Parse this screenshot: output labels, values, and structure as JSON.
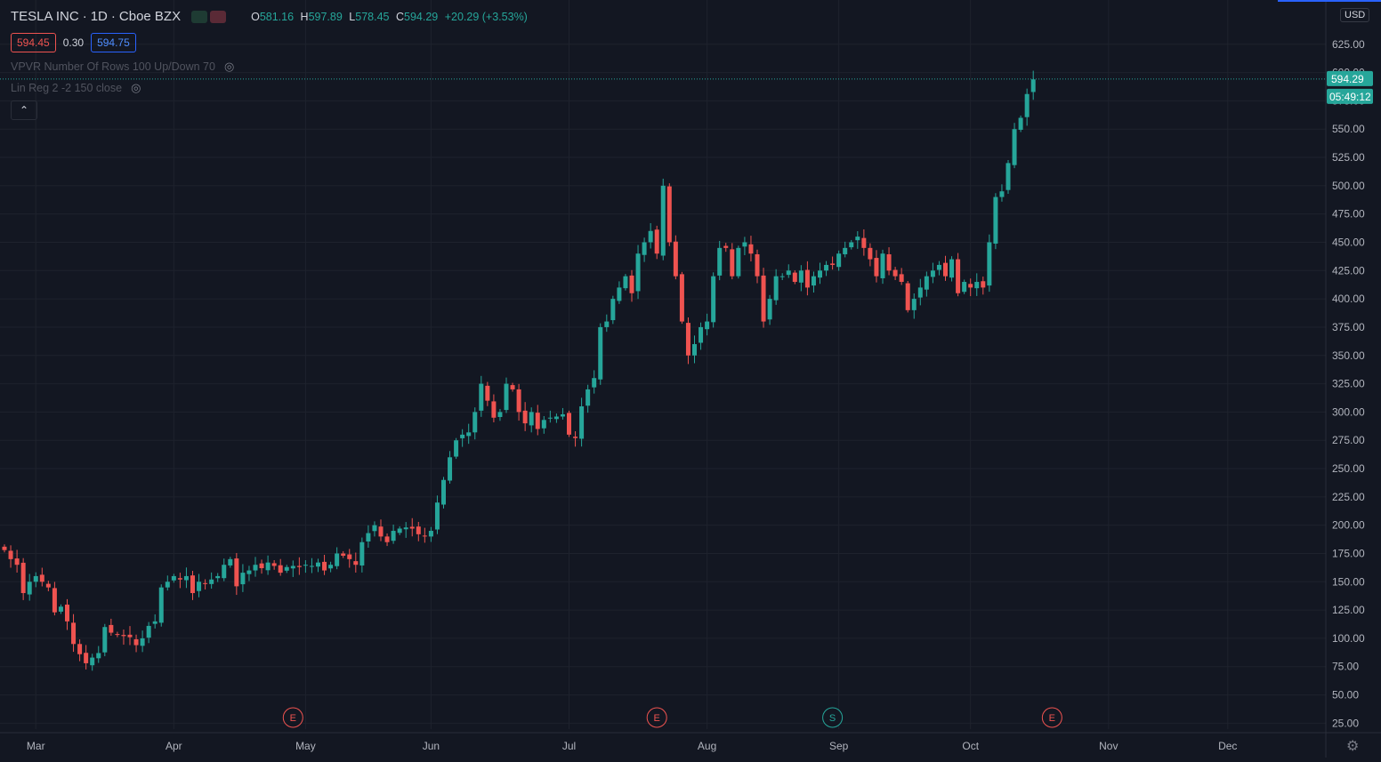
{
  "header": {
    "symbol": "TESLA INC",
    "interval": "1D",
    "exchange": "Cboe BZX",
    "ohlc": {
      "o_label": "O",
      "o": "581.16",
      "h_label": "H",
      "h": "597.89",
      "l_label": "L",
      "l": "578.45",
      "c_label": "C",
      "c": "594.29",
      "change": "+20.29 (+3.53%)"
    }
  },
  "quote": {
    "sell": "594.45",
    "spread": "0.30",
    "buy": "594.75"
  },
  "indicators": [
    {
      "label": "VPVR Number Of Rows 100 Up/Down 70"
    },
    {
      "label": "Lin Reg 2 -2 150 close"
    }
  ],
  "axis": {
    "currency": "USD",
    "last_price": "594.29",
    "countdown": "05:49:12"
  },
  "colors": {
    "background": "#131722",
    "grid": "#1e222d",
    "up": "#26a69a",
    "down": "#ef5350",
    "text": "#b2b5be",
    "accent": "#2962ff"
  },
  "icons": {
    "eye": "eye-off-icon",
    "collapse": "chevron-up-icon",
    "settings": "gear-icon"
  },
  "chart_data": {
    "type": "candlestick",
    "ylim": [
      0,
      650
    ],
    "y_ticks": [
      "25.00",
      "50.00",
      "75.00",
      "100.00",
      "125.00",
      "150.00",
      "175.00",
      "200.00",
      "225.00",
      "250.00",
      "275.00",
      "300.00",
      "325.00",
      "350.00",
      "375.00",
      "400.00",
      "425.00",
      "450.00",
      "475.00",
      "500.00",
      "525.00",
      "550.00",
      "575.00",
      "600.00",
      "625.00"
    ],
    "x_ticks": [
      "Mar",
      "Apr",
      "May",
      "Jun",
      "Jul",
      "Aug",
      "Sep",
      "Oct",
      "Nov",
      "Dec"
    ],
    "events": [
      {
        "label": "E",
        "date": "Apr 29"
      },
      {
        "label": "E",
        "date": "Jul 22"
      },
      {
        "label": "S",
        "date": "Aug 31"
      },
      {
        "label": "E",
        "date": "Oct 21"
      }
    ],
    "closes": [
      178,
      170,
      165,
      140,
      150,
      155,
      150,
      145,
      123,
      128,
      115,
      95,
      86,
      78,
      83,
      87,
      110,
      105,
      103,
      102,
      101,
      94,
      100,
      111,
      115,
      145,
      150,
      155,
      152,
      155,
      140,
      150,
      148,
      152,
      155,
      165,
      170,
      146,
      158,
      160,
      165,
      162,
      167,
      164,
      158,
      163,
      164,
      163,
      165,
      164,
      167,
      160,
      165,
      175,
      173,
      170,
      165,
      185,
      193,
      200,
      190,
      185,
      195,
      197,
      198,
      197,
      192,
      190,
      195,
      220,
      240,
      260,
      275,
      280,
      282,
      300,
      325,
      310,
      295,
      300,
      325,
      320,
      300,
      290,
      300,
      285,
      293,
      295,
      296,
      298,
      280,
      277,
      305,
      320,
      330,
      375,
      380,
      400,
      410,
      420,
      405,
      440,
      450,
      460,
      440,
      500,
      450,
      420,
      380,
      350,
      360,
      375,
      380,
      420,
      445,
      445,
      420,
      445,
      450,
      440,
      420,
      380,
      400,
      420,
      420,
      425,
      415,
      425,
      410,
      420,
      425,
      430,
      430,
      440,
      445,
      450,
      455,
      445,
      435,
      420,
      440,
      425,
      420,
      415,
      390,
      400,
      410,
      420,
      425,
      430,
      420,
      435,
      405,
      415,
      410,
      415,
      410,
      450,
      490,
      495,
      520,
      550,
      560,
      581,
      594
    ]
  }
}
